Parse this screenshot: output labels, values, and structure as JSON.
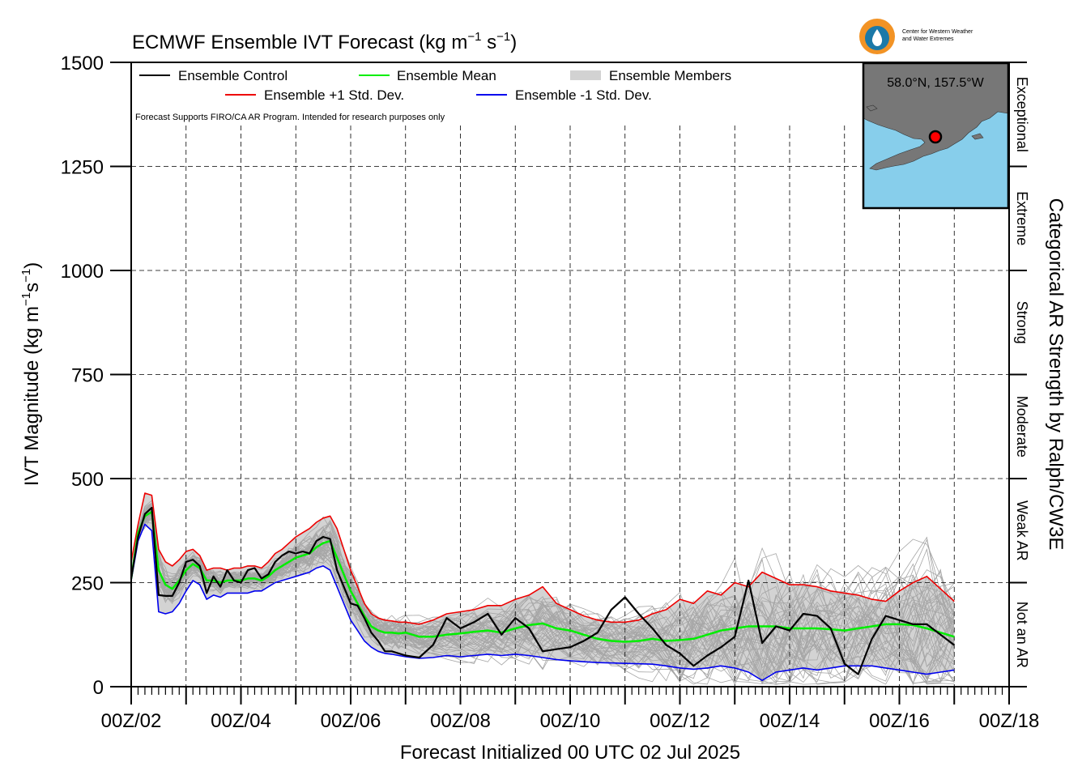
{
  "chart_data": {
    "type": "line",
    "title": "ECMWF Ensemble IVT Forecast (kg m",
    "title_exp1": "−1",
    "title_mid": " s",
    "title_exp2": "−1",
    "title_end": ")",
    "xlabel": "Forecast Initialized 00 UTC 02 Jul 2025",
    "ylabel_main": "IVT Magnitude (kg m",
    "ylabel_exp1": "−1",
    "ylabel_mid": "s",
    "ylabel_exp2": "−1",
    "ylabel_end": ")",
    "right_axis_label": "Categorical AR Strength by Ralph/CW3E",
    "ylim": [
      0,
      1500
    ],
    "y_ticks": [
      "0",
      "250",
      "500",
      "750",
      "1000",
      "1250",
      "1500"
    ],
    "y_tick_values": [
      0,
      250,
      500,
      750,
      1000,
      1250,
      1500
    ],
    "x_range_days": [
      2,
      18
    ],
    "x_ticks": [
      "00Z/02",
      "00Z/04",
      "00Z/06",
      "00Z/08",
      "00Z/10",
      "00Z/12",
      "00Z/14",
      "00Z/16",
      "00Z/18"
    ],
    "x_tick_days": [
      2,
      4,
      6,
      8,
      10,
      12,
      14,
      16,
      18
    ],
    "grid": true,
    "categories_ar": [
      {
        "label": "Not an AR",
        "from": 0,
        "to": 250
      },
      {
        "label": "Weak AR",
        "from": 250,
        "to": 500
      },
      {
        "label": "Moderate",
        "from": 500,
        "to": 750
      },
      {
        "label": "Strong",
        "from": 750,
        "to": 1000
      },
      {
        "label": "Extreme",
        "from": 1000,
        "to": 1250
      },
      {
        "label": "Exceptional",
        "from": 1250,
        "to": 1500
      }
    ],
    "legend": {
      "placement": "top-left",
      "control": "Ensemble Control",
      "mean": "Ensemble Mean",
      "members": "Ensemble Members",
      "plus_sd": "Ensemble +1 Std. Dev.",
      "minus_sd": "Ensemble -1 Std. Dev."
    },
    "disclaimer": "Forecast Supports FIRO/CA AR Program. Intended for research purposes only",
    "location": "58.0°N, 157.5°W",
    "logo_text": [
      "Center for Western Weather",
      "and Water Extremes"
    ],
    "colors": {
      "control": "#000000",
      "mean": "#00ee00",
      "plus_sd": "#ee0000",
      "minus_sd": "#0000ee",
      "members": "#a6a6a6",
      "spread": "#d3d3d3",
      "map_water": "#87ceeb",
      "map_land": "#777777",
      "marker": "#ff0000"
    },
    "x": [
      2.0,
      2.125,
      2.25,
      2.375,
      2.5,
      2.625,
      2.75,
      2.875,
      3.0,
      3.125,
      3.25,
      3.375,
      3.5,
      3.625,
      3.75,
      3.875,
      4.0,
      4.125,
      4.25,
      4.375,
      4.5,
      4.625,
      4.75,
      4.875,
      5.0,
      5.125,
      5.25,
      5.375,
      5.5,
      5.625,
      5.75,
      5.875,
      6.0,
      6.125,
      6.25,
      6.375,
      6.5,
      6.625,
      6.75,
      6.875,
      7.0,
      7.25,
      7.5,
      7.75,
      8.0,
      8.25,
      8.5,
      8.75,
      9.0,
      9.25,
      9.5,
      9.75,
      10.0,
      10.25,
      10.5,
      10.75,
      11.0,
      11.25,
      11.5,
      11.75,
      12.0,
      12.25,
      12.5,
      12.75,
      13.0,
      13.25,
      13.5,
      13.75,
      14.0,
      14.25,
      14.5,
      14.75,
      15.0,
      15.25,
      15.5,
      15.75,
      16.0,
      16.25,
      16.5,
      16.75,
      17.0
    ],
    "series": [
      {
        "name": "Ensemble Control",
        "role": "control",
        "values": [
          260,
          360,
          415,
          430,
          220,
          218,
          218,
          250,
          300,
          305,
          290,
          225,
          265,
          240,
          280,
          255,
          250,
          280,
          285,
          260,
          270,
          300,
          315,
          325,
          320,
          325,
          320,
          350,
          360,
          355,
          280,
          240,
          200,
          195,
          165,
          130,
          110,
          85,
          85,
          80,
          75,
          70,
          100,
          165,
          140,
          155,
          175,
          125,
          165,
          140,
          85,
          90,
          95,
          110,
          130,
          185,
          215,
          175,
          140,
          100,
          80,
          50,
          75,
          95,
          120,
          255,
          105,
          145,
          135,
          175,
          170,
          140,
          55,
          30,
          115,
          170,
          160,
          150,
          150,
          125,
          100
        ]
      },
      {
        "name": "Ensemble Mean",
        "role": "mean",
        "values": [
          260,
          370,
          410,
          420,
          280,
          245,
          235,
          255,
          280,
          295,
          285,
          255,
          255,
          250,
          255,
          255,
          255,
          260,
          260,
          255,
          265,
          280,
          290,
          300,
          310,
          315,
          320,
          335,
          345,
          350,
          310,
          270,
          230,
          200,
          170,
          145,
          135,
          130,
          130,
          128,
          130,
          120,
          120,
          125,
          128,
          132,
          135,
          130,
          140,
          148,
          152,
          140,
          135,
          125,
          115,
          110,
          108,
          110,
          115,
          110,
          112,
          115,
          125,
          135,
          140,
          145,
          145,
          145,
          140,
          140,
          140,
          138,
          135,
          140,
          145,
          150,
          150,
          148,
          140,
          130,
          120
        ]
      },
      {
        "name": "Ensemble +1 Std. Dev.",
        "role": "plus_sd",
        "values": [
          300,
          390,
          465,
          460,
          330,
          300,
          290,
          305,
          325,
          330,
          315,
          280,
          285,
          285,
          280,
          285,
          285,
          290,
          290,
          285,
          300,
          320,
          330,
          345,
          360,
          370,
          380,
          395,
          405,
          410,
          380,
          330,
          280,
          240,
          200,
          175,
          165,
          160,
          158,
          155,
          155,
          150,
          160,
          175,
          180,
          185,
          195,
          195,
          210,
          220,
          240,
          200,
          185,
          170,
          160,
          155,
          155,
          160,
          175,
          185,
          210,
          200,
          230,
          220,
          250,
          240,
          275,
          260,
          245,
          245,
          240,
          230,
          225,
          220,
          210,
          205,
          230,
          250,
          265,
          235,
          205
        ]
      },
      {
        "name": "Ensemble -1 Std. Dev.",
        "role": "minus_sd",
        "values": [
          255,
          350,
          390,
          375,
          180,
          175,
          180,
          200,
          230,
          255,
          245,
          210,
          220,
          215,
          225,
          225,
          225,
          225,
          230,
          230,
          240,
          250,
          255,
          260,
          265,
          270,
          275,
          285,
          290,
          280,
          240,
          200,
          160,
          135,
          110,
          95,
          85,
          80,
          78,
          75,
          72,
          68,
          70,
          75,
          72,
          75,
          78,
          75,
          78,
          75,
          70,
          65,
          62,
          60,
          58,
          57,
          56,
          55,
          54,
          50,
          45,
          42,
          45,
          50,
          45,
          35,
          15,
          35,
          40,
          45,
          40,
          45,
          50,
          50,
          50,
          45,
          40,
          35,
          30,
          35,
          40
        ]
      }
    ]
  }
}
